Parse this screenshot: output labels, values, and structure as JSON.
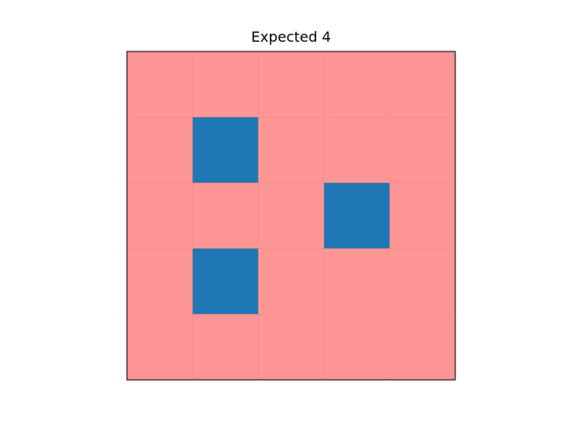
{
  "chart_data": {
    "type": "heatmap",
    "title": "Expected 4",
    "xlabel": "",
    "ylabel": "",
    "rows": 5,
    "cols": 5,
    "grid": true,
    "colors": {
      "empty": "#ff9696",
      "filled": "#1f77b4",
      "grid_line": "#c88080",
      "frame": "#000000"
    },
    "cells": [
      [
        0,
        0,
        0,
        0,
        0
      ],
      [
        0,
        1,
        0,
        0,
        0
      ],
      [
        0,
        0,
        0,
        1,
        0
      ],
      [
        0,
        1,
        0,
        0,
        0
      ],
      [
        0,
        0,
        0,
        0,
        0
      ]
    ]
  }
}
